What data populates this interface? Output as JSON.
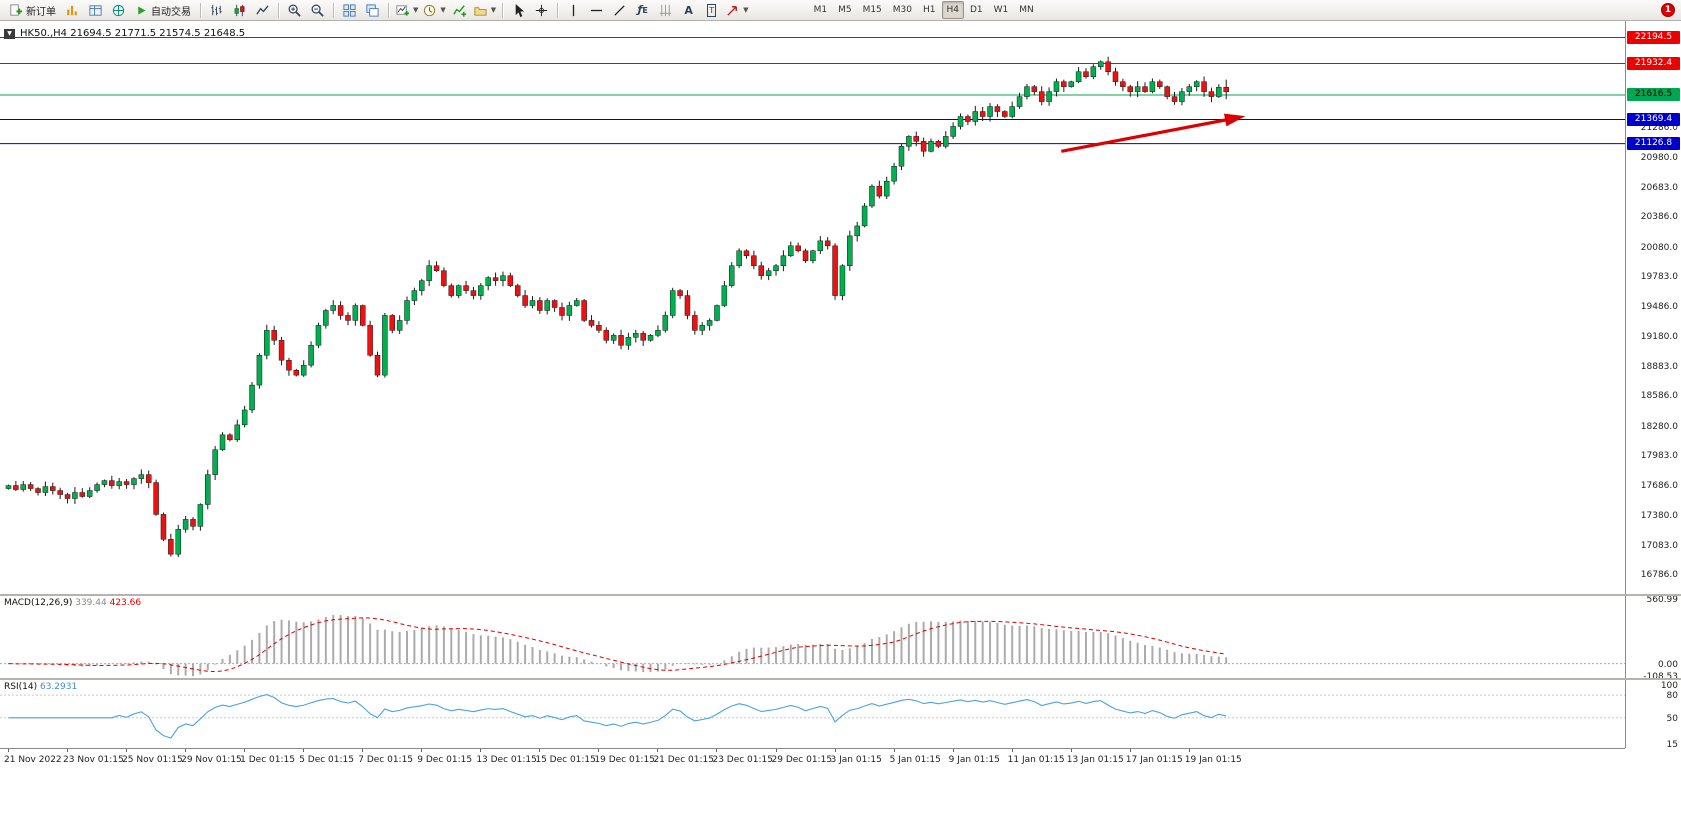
{
  "toolbar": {
    "new_order_label": "新订单",
    "auto_trading_label": "自动交易",
    "timeframes": [
      "M1",
      "M5",
      "M15",
      "M30",
      "H1",
      "H4",
      "D1",
      "W1",
      "MN"
    ],
    "active_timeframe": "H4",
    "alert_count": "1",
    "icons": [
      "doc-plus-icon",
      "market-watch-icon",
      "data-window-icon",
      "navigator-icon",
      "play-icon",
      "ohlc-bars-icon",
      "candlestick-icon",
      "line-chart-icon",
      "zoom-in-icon",
      "zoom-out-icon",
      "tile-windows-icon",
      "cascade-windows-icon",
      "new-chart-icon",
      "clock-icon",
      "indicators-icon",
      "template-icon",
      "cursor-icon",
      "crosshair-icon",
      "vertical-line-icon",
      "horizontal-line-icon",
      "trendline-icon",
      "fibonacci-icon",
      "cycle-lines-icon",
      "text-icon",
      "label-icon",
      "arrow-shape-icon"
    ]
  },
  "chart": {
    "title": "HK50.,H4 21694.5 21771.5 21574.5 21648.5",
    "colors": {
      "up": "#00b050",
      "down": "#ee1111",
      "arrow": "#dd0000"
    },
    "price_range": {
      "max": 22360,
      "min": 16600
    },
    "levels": [
      {
        "value": 22194.5,
        "label": "22194.5",
        "color": "#ee0000",
        "text": "#ffffff"
      },
      {
        "value": 21932.4,
        "label": "21932.4",
        "color": "#ee0000",
        "text": "#ffffff"
      },
      {
        "value": 21616.5,
        "label": "21616.5",
        "color": "#00a650",
        "text": "#000000"
      },
      {
        "value": 21369.4,
        "label": "21369.4",
        "color": "#0000cc",
        "text": "#ffffff"
      },
      {
        "value": 21126.8,
        "label": "21126.8",
        "color": "#0000cc",
        "text": "#ffffff"
      }
    ],
    "axis_ticks": [
      {
        "value": 21286.0,
        "label": "21286.0"
      },
      {
        "value": 20980.0,
        "label": "20980.0"
      },
      {
        "value": 20683.0,
        "label": "20683.0"
      },
      {
        "value": 20386.0,
        "label": "20386.0"
      },
      {
        "value": 20080.0,
        "label": "20080.0"
      },
      {
        "value": 19783.0,
        "label": "19783.0"
      },
      {
        "value": 19486.0,
        "label": "19486.0"
      },
      {
        "value": 19180.0,
        "label": "19180.0"
      },
      {
        "value": 18883.0,
        "label": "18883.0"
      },
      {
        "value": 18586.0,
        "label": "18586.0"
      },
      {
        "value": 18280.0,
        "label": "18280.0"
      },
      {
        "value": 17983.0,
        "label": "17983.0"
      },
      {
        "value": 17686.0,
        "label": "17686.0"
      },
      {
        "value": 17380.0,
        "label": "17380.0"
      },
      {
        "value": 17083.0,
        "label": "17083.0"
      },
      {
        "value": 16786.0,
        "label": "16786.0"
      }
    ]
  },
  "macd": {
    "name": "MACD(12,26,9)",
    "value_hist": "339.44",
    "value_signal": "423.66",
    "axis": [
      {
        "label": "560.99",
        "value": 560.99
      },
      {
        "label": "0.00",
        "value": 0
      },
      {
        "label": "-108.53",
        "value": -108.53
      }
    ],
    "range": {
      "max": 590,
      "min": -125
    }
  },
  "rsi": {
    "name": "RSI(14)",
    "value": "63.2931",
    "axis": [
      {
        "label": "100",
        "value": 100
      },
      {
        "label": "80",
        "value": 80
      },
      {
        "label": "50",
        "value": 50
      },
      {
        "label": "15",
        "value": 15
      }
    ],
    "levels": [
      80,
      50
    ],
    "range": {
      "max": 100,
      "min": 10
    }
  },
  "time_axis": [
    "21 Nov 2022",
    "23 Nov 01:15",
    "25 Nov 01:15",
    "29 Nov 01:15",
    "1 Dec 01:15",
    "5 Dec 01:15",
    "7 Dec 01:15",
    "9 Dec 01:15",
    "13 Dec 01:15",
    "15 Dec 01:15",
    "19 Dec 01:15",
    "21 Dec 01:15",
    "23 Dec 01:15",
    "29 Dec 01:15",
    "3 Jan 01:15",
    "5 Jan 01:15",
    "9 Jan 01:15",
    "11 Jan 01:15",
    "13 Jan 01:15",
    "17 Jan 01:15",
    "19 Jan 01:15"
  ],
  "chart_data": {
    "type": "candlestick",
    "symbol": "HK50.",
    "period": "H4",
    "ohlc_current": {
      "open": 21694.5,
      "high": 21771.5,
      "low": 21574.5,
      "close": 21648.5
    },
    "bars_per_time_label": 8,
    "closes": [
      17690,
      17650,
      17700,
      17660,
      17620,
      17680,
      17640,
      17600,
      17560,
      17620,
      17580,
      17640,
      17700,
      17740,
      17690,
      17730,
      17700,
      17760,
      17800,
      17720,
      17400,
      17150,
      17000,
      17250,
      17350,
      17280,
      17500,
      17800,
      18050,
      18200,
      18150,
      18300,
      18450,
      18700,
      19000,
      19250,
      19150,
      18950,
      18850,
      18800,
      18900,
      19100,
      19300,
      19450,
      19500,
      19400,
      19350,
      19500,
      19300,
      19000,
      18800,
      19400,
      19250,
      19350,
      19550,
      19650,
      19750,
      19900,
      19850,
      19700,
      19600,
      19700,
      19650,
      19600,
      19700,
      19780,
      19750,
      19800,
      19700,
      19600,
      19500,
      19550,
      19450,
      19550,
      19480,
      19400,
      19500,
      19550,
      19350,
      19300,
      19250,
      19150,
      19200,
      19100,
      19180,
      19220,
      19150,
      19200,
      19250,
      19400,
      19650,
      19600,
      19400,
      19250,
      19300,
      19350,
      19500,
      19700,
      19900,
      20050,
      20000,
      19900,
      19800,
      19850,
      19900,
      20000,
      20100,
      20050,
      19950,
      20050,
      20150,
      20100,
      19600,
      19900,
      20200,
      20300,
      20500,
      20700,
      20600,
      20750,
      20900,
      21100,
      21200,
      21150,
      21050,
      21150,
      21100,
      21200,
      21300,
      21400,
      21350,
      21450,
      21400,
      21500,
      21450,
      21400,
      21500,
      21600,
      21700,
      21650,
      21550,
      21650,
      21750,
      21700,
      21750,
      21850,
      21800,
      21900,
      21950,
      21850,
      21750,
      21700,
      21650,
      21700,
      21650,
      21750,
      21700,
      21600,
      21550,
      21650,
      21700,
      21750,
      21650,
      21600,
      21694.5,
      21648.5
    ],
    "annotation_arrow": {
      "from_bar": 143,
      "from_price": 21050,
      "to_bar": 167,
      "to_price": 21390
    }
  }
}
